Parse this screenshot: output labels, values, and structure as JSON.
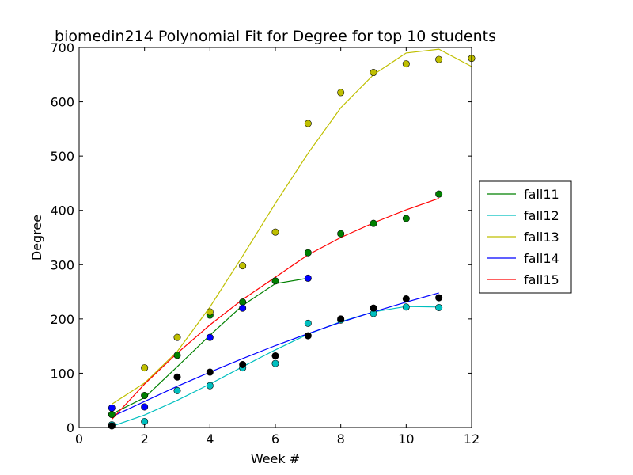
{
  "chart_data": {
    "type": "line",
    "title": "biomedin214 Polynomial Fit for Degree for top 10 students",
    "xlabel": "Week #",
    "ylabel": "Degree",
    "xlim": [
      0,
      12
    ],
    "ylim": [
      0,
      700
    ],
    "xticks": [
      0,
      2,
      4,
      6,
      8,
      10,
      12
    ],
    "yticks": [
      0,
      100,
      200,
      300,
      400,
      500,
      600,
      700
    ],
    "grid": false,
    "legend_position": "right",
    "series": [
      {
        "name": "fall11",
        "color": "#008000",
        "fit": {
          "x": [
            1,
            2,
            3,
            4,
            5,
            6,
            7
          ],
          "y": [
            25,
            55,
            112,
            170,
            225,
            265,
            275
          ]
        },
        "points": {
          "x": [
            1,
            2,
            3,
            4,
            5,
            6,
            7,
            8,
            9,
            10,
            11
          ],
          "y": [
            24,
            59,
            133,
            207,
            231,
            270,
            322,
            357,
            376,
            385,
            430
          ]
        }
      },
      {
        "name": "fall12",
        "color": "#00bfbf",
        "fit": {
          "x": [
            1,
            2,
            3,
            4,
            5,
            6,
            7,
            8,
            9,
            10,
            11
          ],
          "y": [
            2,
            23,
            50,
            80,
            112,
            143,
            172,
            195,
            213,
            223,
            222
          ]
        },
        "points": {
          "x": [
            1,
            2,
            3,
            4,
            5,
            6,
            7,
            8,
            9,
            10,
            11
          ],
          "y": [
            5,
            11,
            68,
            77,
            110,
            118,
            192,
            198,
            210,
            222,
            221
          ]
        }
      },
      {
        "name": "fall13",
        "color": "#bfbf00",
        "fit": {
          "x": [
            1,
            2,
            3,
            4,
            5,
            6,
            7,
            8,
            9,
            10,
            11,
            12
          ],
          "y": [
            43,
            82,
            140,
            222,
            316,
            413,
            505,
            589,
            650,
            690,
            697,
            665
          ]
        },
        "points": {
          "x": [
            2,
            3,
            4,
            5,
            6,
            7,
            8,
            9,
            10,
            11,
            12
          ],
          "y": [
            110,
            166,
            213,
            298,
            360,
            560,
            617,
            654,
            670,
            678,
            680
          ]
        }
      },
      {
        "name": "fall14",
        "color": "#0000ff",
        "fit": {
          "x": [
            1,
            2,
            3,
            4,
            5,
            6,
            7,
            8,
            9,
            10,
            11
          ],
          "y": [
            20,
            48,
            76,
            102,
            127,
            151,
            173,
            194,
            213,
            231,
            248
          ]
        },
        "points": {
          "x": [
            1,
            2,
            4,
            5,
            7
          ],
          "y": [
            36,
            38,
            166,
            220,
            275
          ]
        }
      },
      {
        "name": "fall15",
        "color": "#ff0000",
        "fit": {
          "x": [
            1,
            2,
            3,
            4,
            5,
            6,
            7,
            8,
            9,
            10,
            11
          ],
          "y": [
            15,
            80,
            137,
            189,
            236,
            277,
            318,
            350,
            377,
            401,
            422
          ]
        },
        "points": {
          "x": [],
          "y": []
        }
      }
    ],
    "extra_points": [
      {
        "color": "#000000",
        "x": [
          1,
          3,
          4,
          5,
          6,
          7,
          8,
          9,
          10,
          11
        ],
        "y": [
          3,
          93,
          102,
          116,
          132,
          169,
          200,
          220,
          237,
          239
        ]
      }
    ]
  }
}
